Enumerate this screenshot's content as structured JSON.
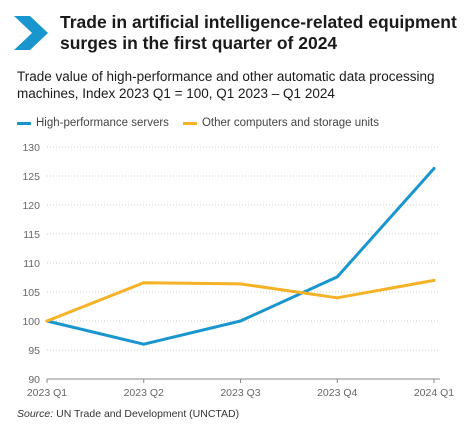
{
  "title": "Trade in artificial intelligence-related equipment surges in the first quarter of 2024",
  "subtitle": "Trade value of high-performance and other automatic data processing machines, Index 2023 Q1 = 100, Q1 2023 – Q1 2024",
  "source_label": "Source:",
  "source_text": " UN Trade and Development (UNCTAD)",
  "colors": {
    "accent": "#009EDB",
    "series_1": "#1A96CE",
    "series_2": "#F5B226"
  },
  "logo_icon": "chevron-right-icon",
  "chart_data": {
    "type": "line",
    "categories": [
      "2023 Q1",
      "2023 Q2",
      "2023 Q3",
      "2023 Q4",
      "2024 Q1"
    ],
    "series": [
      {
        "name": "High-performance servers",
        "values": [
          100,
          96,
          100,
          107.6,
          126.3
        ]
      },
      {
        "name": "Other computers and storage units",
        "values": [
          100,
          106.6,
          106.4,
          104,
          107
        ]
      }
    ],
    "yticks": [
      90,
      95,
      100,
      105,
      110,
      115,
      120,
      125,
      130
    ],
    "ylim": [
      90,
      130
    ],
    "grid": true,
    "legend_position": "top-left"
  }
}
